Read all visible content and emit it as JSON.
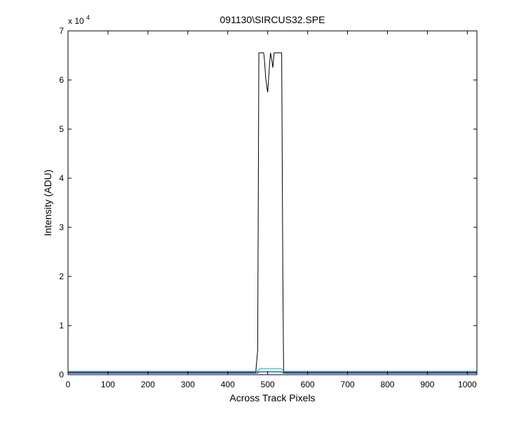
{
  "chart_data": {
    "type": "line",
    "title": "091130\\SIRCUS32.SPE",
    "xlabel": "Across Track Pixels",
    "ylabel": "Intensity (ADU)",
    "y_exponent_label": "x 10",
    "y_exponent_power": "4",
    "xlim": [
      0,
      1024
    ],
    "ylim": [
      0,
      7
    ],
    "y_scale_factor": 10000,
    "xticks": [
      0,
      100,
      200,
      300,
      400,
      500,
      600,
      700,
      800,
      900,
      1000
    ],
    "yticks": [
      0,
      1,
      2,
      3,
      4,
      5,
      6,
      7
    ],
    "grid": false,
    "box": true,
    "series": [
      {
        "color": "#000000",
        "x": [
          0,
          100,
          200,
          300,
          400,
          460,
          470,
          475,
          478,
          480,
          485,
          490,
          492,
          495,
          498,
          500,
          505,
          507,
          510,
          513,
          516,
          520,
          525,
          530,
          535,
          538,
          540,
          545,
          550,
          600,
          700,
          800,
          900,
          1024
        ],
        "y": [
          0.04,
          0.04,
          0.04,
          0.04,
          0.04,
          0.04,
          0.04,
          0.5,
          6.553,
          6.553,
          6.553,
          6.553,
          6.4,
          6.05,
          5.85,
          5.75,
          6.35,
          6.553,
          6.42,
          6.25,
          6.553,
          6.553,
          6.553,
          6.553,
          6.553,
          2.0,
          0.04,
          0.04,
          0.04,
          0.04,
          0.04,
          0.04,
          0.04,
          0.04
        ]
      },
      {
        "color": "#1f4e8c",
        "x": [
          0,
          100,
          200,
          300,
          400,
          475,
          480,
          535,
          540,
          600,
          700,
          800,
          900,
          1024
        ],
        "y": [
          0.03,
          0.03,
          0.03,
          0.03,
          0.03,
          0.03,
          0.06,
          0.06,
          0.03,
          0.03,
          0.03,
          0.03,
          0.03,
          0.03
        ]
      },
      {
        "color": "#00bcbc",
        "x": [
          0,
          100,
          200,
          300,
          400,
          475,
          480,
          535,
          540,
          600,
          700,
          800,
          900,
          1024
        ],
        "y": [
          0.07,
          0.07,
          0.07,
          0.07,
          0.07,
          0.07,
          0.12,
          0.12,
          0.07,
          0.07,
          0.07,
          0.07,
          0.07,
          0.07
        ]
      },
      {
        "color": "#3344cc",
        "x": [
          0,
          100,
          200,
          300,
          400,
          500,
          600,
          700,
          800,
          900,
          1024
        ],
        "y": [
          0.055,
          0.055,
          0.055,
          0.055,
          0.055,
          0.055,
          0.055,
          0.055,
          0.055,
          0.055,
          0.055
        ]
      }
    ]
  }
}
